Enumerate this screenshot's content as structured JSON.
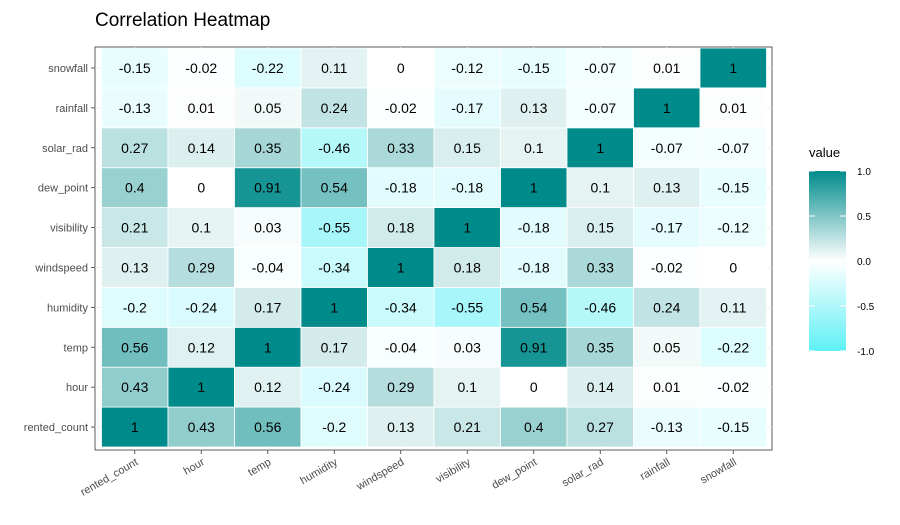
{
  "chart_data": {
    "type": "heatmap",
    "title": "Correlation Heatmap",
    "variables": [
      "rented_count",
      "hour",
      "temp",
      "humidity",
      "windspeed",
      "visibility",
      "dew_point",
      "solar_rad",
      "rainfall",
      "snowfall"
    ],
    "matrix": [
      [
        1,
        0.43,
        0.56,
        -0.2,
        0.13,
        0.21,
        0.4,
        0.27,
        -0.13,
        -0.15
      ],
      [
        0.43,
        1,
        0.12,
        -0.24,
        0.29,
        0.1,
        0,
        0.14,
        0.01,
        -0.02
      ],
      [
        0.56,
        0.12,
        1,
        0.17,
        -0.04,
        0.03,
        0.91,
        0.35,
        0.05,
        -0.22
      ],
      [
        -0.2,
        -0.24,
        0.17,
        1,
        -0.34,
        -0.55,
        0.54,
        -0.46,
        0.24,
        0.11
      ],
      [
        0.13,
        0.29,
        -0.04,
        -0.34,
        1,
        0.18,
        -0.18,
        0.33,
        -0.02,
        0
      ],
      [
        0.21,
        0.1,
        0.03,
        -0.55,
        0.18,
        1,
        -0.18,
        0.15,
        -0.17,
        -0.12
      ],
      [
        0.4,
        0,
        0.91,
        0.54,
        -0.18,
        -0.18,
        1,
        0.1,
        0.13,
        -0.15
      ],
      [
        0.27,
        0.14,
        0.35,
        -0.46,
        0.33,
        0.15,
        0.1,
        1,
        -0.07,
        -0.07
      ],
      [
        -0.13,
        0.01,
        0.05,
        0.24,
        -0.02,
        -0.17,
        0.13,
        -0.07,
        1,
        0.01
      ],
      [
        -0.15,
        -0.02,
        -0.22,
        0.11,
        0,
        -0.12,
        -0.15,
        -0.07,
        0.01,
        1
      ]
    ],
    "legend": {
      "title": "value",
      "ticks": [
        "1.0",
        "0.5",
        "0.0",
        "-0.5",
        "-1.0"
      ],
      "tick_values": [
        1,
        0.5,
        0,
        -0.5,
        -1
      ],
      "placement": "right"
    },
    "range": [
      -1,
      1
    ],
    "colors": {
      "high": "#008b8b",
      "mid": "#ffffff",
      "low": "#5ff0f5"
    },
    "grid": true
  }
}
